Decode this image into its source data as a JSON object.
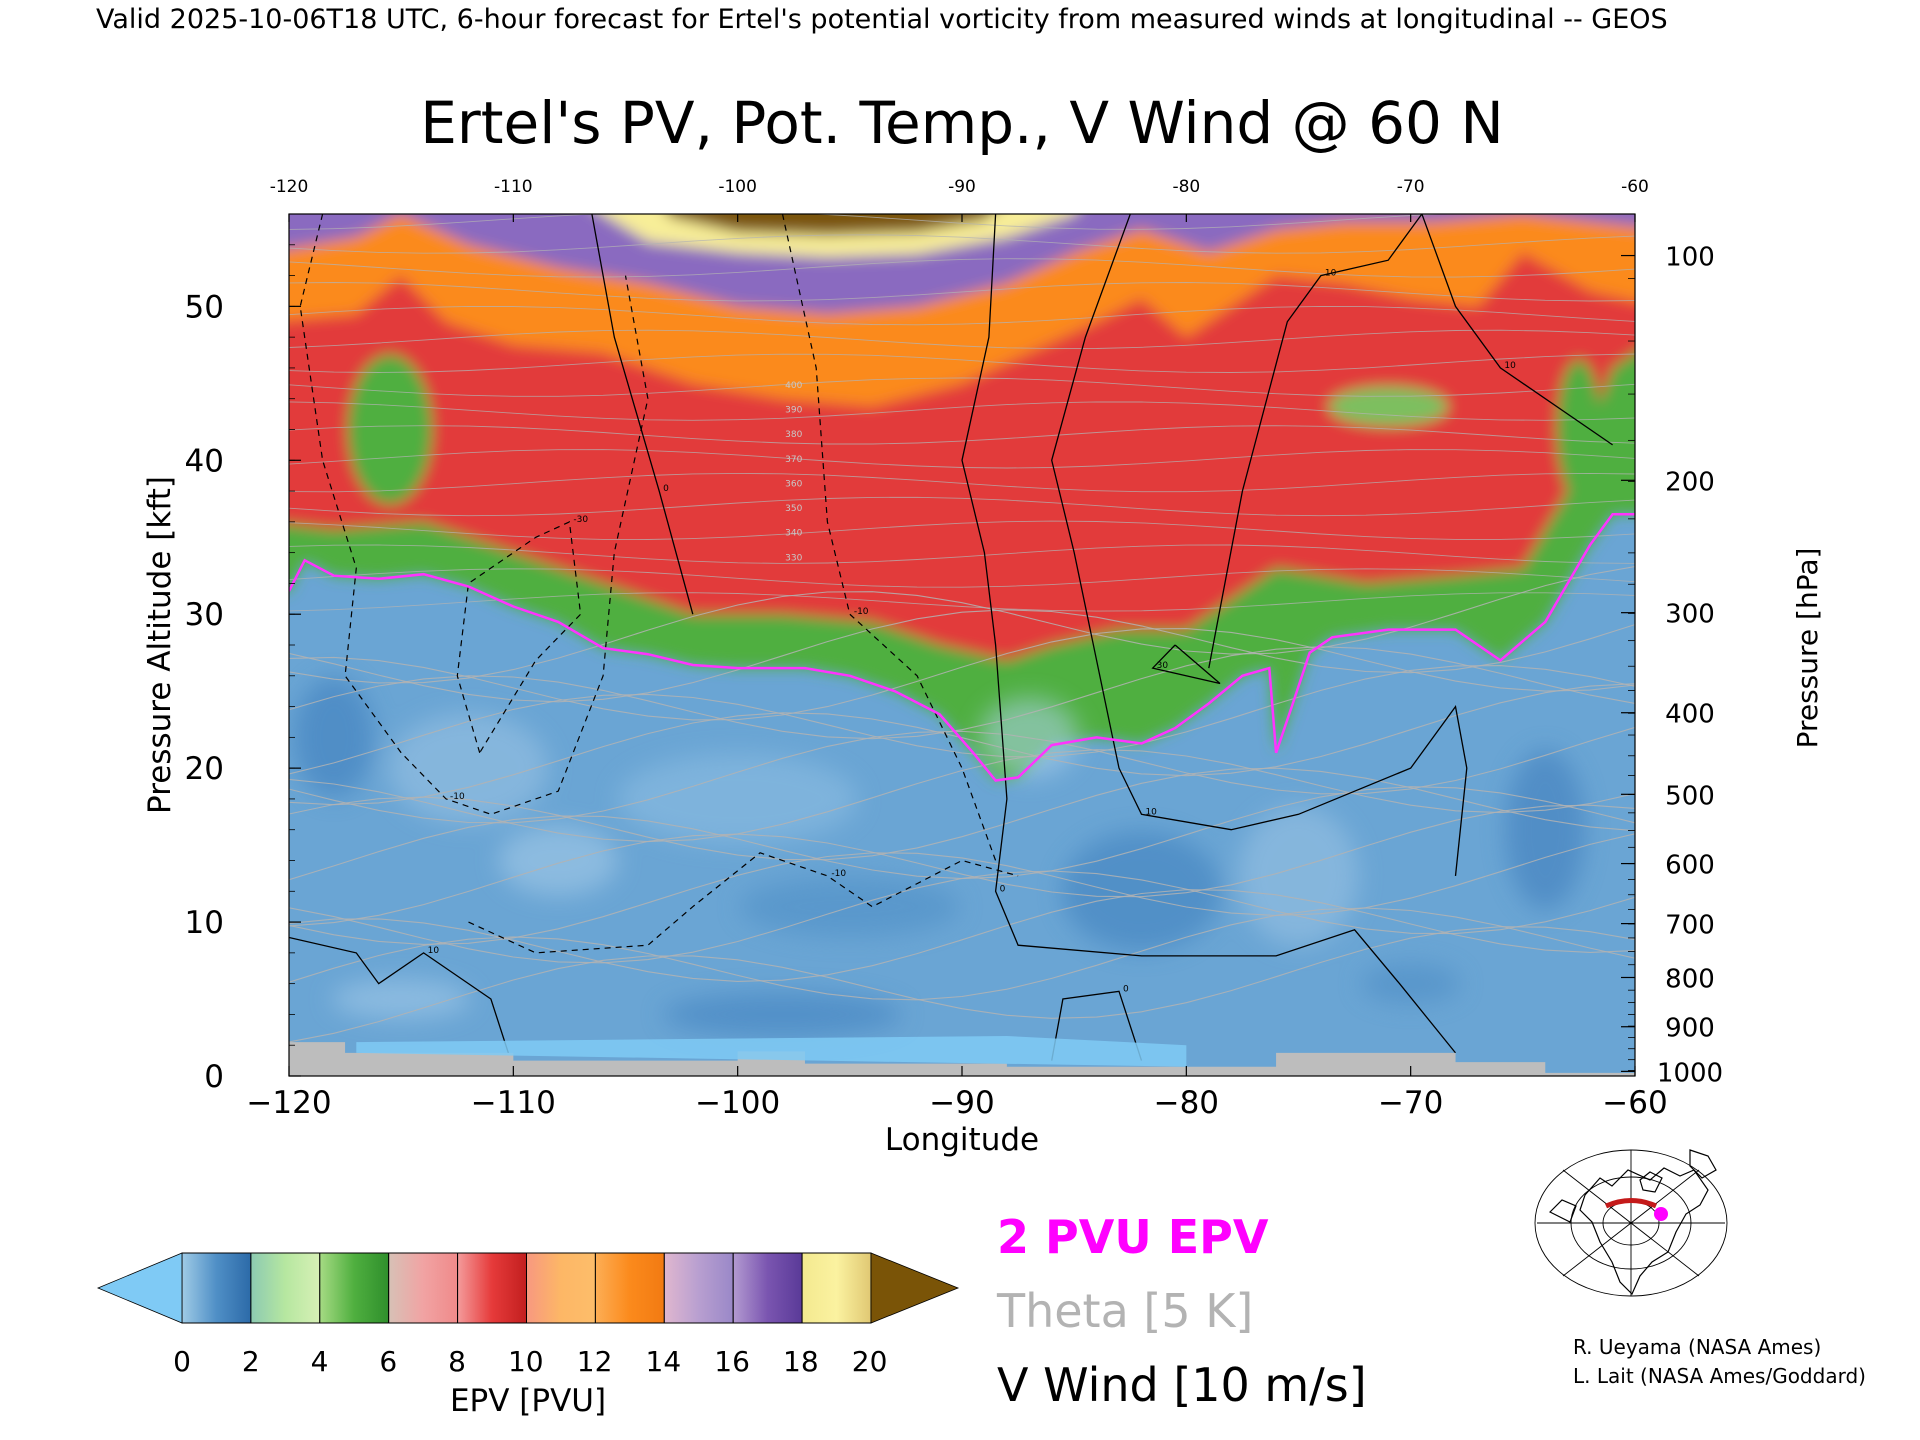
{
  "header": {
    "valid_line": "Valid 2025-10-06T18 UTC, 6-hour forecast for Ertel's potential vorticity from measured winds at longitudinal -- GEOS"
  },
  "chart_data": {
    "type": "heatmap",
    "title": "Ertel's PV, Pot. Temp., V Wind @ 60 N",
    "xlabel": "Longitude",
    "ylabel": "Pressure Altitude [kft]",
    "y2label": "Pressure [hPa]",
    "xlim": [
      -120,
      -60
    ],
    "ylim": [
      0,
      56
    ],
    "x_ticks": [
      -120,
      -110,
      -100,
      -90,
      -80,
      -70,
      -60
    ],
    "x_tick_labels": [
      "−120",
      "−110",
      "−100",
      "−90",
      "−80",
      "−70",
      "−60"
    ],
    "x_top_tick_labels": [
      "-120",
      "-110",
      "-100",
      "-90",
      "-80",
      "-70",
      "-60"
    ],
    "y_ticks": [
      0,
      10,
      20,
      30,
      40,
      50
    ],
    "y_tick_labels": [
      "0",
      "10",
      "20",
      "30",
      "40",
      "50"
    ],
    "pressure_ticks": [
      {
        "hpa": 1000,
        "label": "1000",
        "kft": 0.3
      },
      {
        "hpa": 900,
        "label": "900",
        "kft": 3.2
      },
      {
        "hpa": 800,
        "label": "800",
        "kft": 6.4
      },
      {
        "hpa": 700,
        "label": "700",
        "kft": 9.9
      },
      {
        "hpa": 600,
        "label": "600",
        "kft": 13.8
      },
      {
        "hpa": 500,
        "label": "500",
        "kft": 18.3
      },
      {
        "hpa": 400,
        "label": "400",
        "kft": 23.6
      },
      {
        "hpa": 300,
        "label": "300",
        "kft": 30.1
      },
      {
        "hpa": 200,
        "label": "200",
        "kft": 38.7
      },
      {
        "hpa": 100,
        "label": "100",
        "kft": 53.3
      }
    ],
    "epv_colorbar": {
      "label": "EPV [PVU]",
      "ticks": [
        "0",
        "2",
        "4",
        "6",
        "8",
        "10",
        "12",
        "14",
        "16",
        "18",
        "20"
      ],
      "under_color": "#7fcaf5",
      "over_color": "#7a5407",
      "segments": [
        [
          "#9fcbe6",
          "#4f8fc6",
          "#2c6aa8"
        ],
        [
          "#8ccab2",
          "#b6e7a0",
          "#d7f0b6"
        ],
        [
          "#a6db84",
          "#4faf3f",
          "#2f8f2c"
        ],
        [
          "#d7c1b6",
          "#f1a3a3",
          "#f08a8a"
        ],
        [
          "#f49b9b",
          "#e63a3a",
          "#c21f1f"
        ],
        [
          "#f79880",
          "#fdb766",
          "#fdbd6a"
        ],
        [
          "#fdae55",
          "#fb8a1c",
          "#f27a12"
        ],
        [
          "#e0b7cf",
          "#b89fd0",
          "#9a88c8"
        ],
        [
          "#b39ad1",
          "#7a55b0",
          "#5a3a98"
        ],
        [
          "#f3e98f",
          "#fbf2a0",
          "#e0c873"
        ],
        [
          "#8a6414",
          "#7a5407"
        ]
      ]
    },
    "pv_regions": [
      {
        "name": "troposphere",
        "color": "#6aa5d4"
      },
      {
        "name": "2-6 PVU",
        "color": "#4faf3f"
      },
      {
        "name": "7-11 PVU",
        "color": "#e23b3b"
      },
      {
        "name": "12-13 PVU",
        "color": "#fb8a1c"
      },
      {
        "name": "14-17 PVU",
        "color": "#8a6ac0"
      },
      {
        "name": "18-19 PVU",
        "color": "#f8ee98"
      },
      {
        "name": ">20 PVU",
        "color": "#7a5407"
      },
      {
        "name": "terrain",
        "color": "#bdbdbd"
      }
    ],
    "tropopause_2pvu_kft": [
      [
        -120,
        31.5
      ],
      [
        -119.3,
        33.5
      ],
      [
        -118,
        32.5
      ],
      [
        -116,
        32.3
      ],
      [
        -114,
        32.6
      ],
      [
        -112,
        31.8
      ],
      [
        -110,
        30.5
      ],
      [
        -108,
        29.5
      ],
      [
        -106,
        27.8
      ],
      [
        -104,
        27.4
      ],
      [
        -102,
        26.7
      ],
      [
        -100,
        26.5
      ],
      [
        -97,
        26.5
      ],
      [
        -95,
        26.0
      ],
      [
        -93,
        25.0
      ],
      [
        -91,
        23.5
      ],
      [
        -89.5,
        21.0
      ],
      [
        -88.5,
        19.2
      ],
      [
        -87.5,
        19.4
      ],
      [
        -86,
        21.5
      ],
      [
        -84,
        22.0
      ],
      [
        -82,
        21.6
      ],
      [
        -80.5,
        22.6
      ],
      [
        -79,
        24.2
      ],
      [
        -77.5,
        26.0
      ],
      [
        -76.3,
        26.5
      ],
      [
        -76,
        21.0
      ],
      [
        -75.3,
        24.0
      ],
      [
        -74.5,
        27.5
      ],
      [
        -73.5,
        28.5
      ],
      [
        -71,
        29.0
      ],
      [
        -68,
        29.0
      ],
      [
        -66,
        27.0
      ],
      [
        -64,
        29.5
      ],
      [
        -62,
        34.5
      ],
      [
        -61,
        36.5
      ],
      [
        -60,
        36.5
      ]
    ],
    "theta_labels": [
      "330",
      "340",
      "350",
      "360",
      "370",
      "380",
      "390",
      "400"
    ],
    "v_wind_contours": [
      {
        "label": "0",
        "points": [
          [
            -106.5,
            56
          ],
          [
            -105.5,
            48
          ],
          [
            -103.5,
            38
          ],
          [
            -102,
            30
          ]
        ]
      },
      {
        "label": "0",
        "points": [
          [
            -88.5,
            56
          ],
          [
            -88.8,
            48
          ],
          [
            -90,
            40
          ],
          [
            -89,
            34
          ],
          [
            -88.5,
            28
          ],
          [
            -88,
            18
          ],
          [
            -88.5,
            12
          ],
          [
            -87.5,
            8.5
          ],
          [
            -82,
            7.8
          ],
          [
            -76,
            7.8
          ],
          [
            -72.5,
            9.5
          ],
          [
            -70.5,
            6
          ],
          [
            -68,
            1.5
          ]
        ]
      },
      {
        "label": "10",
        "points": [
          [
            -82.5,
            56
          ],
          [
            -84.5,
            48
          ],
          [
            -86,
            40
          ],
          [
            -85,
            34
          ],
          [
            -84,
            27
          ],
          [
            -83,
            20
          ],
          [
            -82,
            17
          ],
          [
            -78,
            16
          ],
          [
            -75,
            17
          ],
          [
            -70,
            20
          ],
          [
            -68,
            24
          ],
          [
            -67.5,
            20
          ],
          [
            -68,
            13
          ]
        ]
      },
      {
        "label": "10",
        "points": [
          [
            -69.5,
            56
          ],
          [
            -68,
            50
          ],
          [
            -66,
            46
          ],
          [
            -61,
            41
          ]
        ]
      },
      {
        "label": "10",
        "points": [
          [
            -79,
            26.5
          ],
          [
            -77.5,
            38
          ],
          [
            -75.5,
            49
          ],
          [
            -74,
            52
          ],
          [
            -71,
            53
          ],
          [
            -69.5,
            56
          ]
        ]
      },
      {
        "label": "30",
        "points": [
          [
            -80.5,
            28
          ],
          [
            -78.5,
            25.5
          ],
          [
            -81.5,
            26.5
          ],
          [
            -80.5,
            28
          ]
        ]
      },
      {
        "label": "10",
        "points": [
          [
            -120,
            9
          ],
          [
            -117,
            8
          ],
          [
            -116,
            6
          ],
          [
            -114,
            8
          ],
          [
            -111,
            5
          ],
          [
            -110,
            0.5
          ]
        ]
      },
      {
        "label": "0",
        "points": [
          [
            -86,
            1
          ],
          [
            -85.5,
            5
          ],
          [
            -83,
            5.5
          ],
          [
            -82,
            1
          ]
        ]
      }
    ],
    "v_wind_negative_contours": [
      {
        "label": "-10",
        "points": [
          [
            -118.5,
            56
          ],
          [
            -119.5,
            50
          ],
          [
            -118.5,
            40
          ],
          [
            -117,
            33
          ],
          [
            -117.5,
            26
          ],
          [
            -115,
            21
          ],
          [
            -113,
            18
          ],
          [
            -111,
            17
          ],
          [
            -108,
            18.5
          ],
          [
            -106,
            26
          ],
          [
            -105.5,
            34
          ],
          [
            -104,
            44
          ],
          [
            -105,
            52
          ]
        ]
      },
      {
        "label": "-30",
        "points": [
          [
            -111.5,
            21
          ],
          [
            -112.5,
            26
          ],
          [
            -112,
            32
          ],
          [
            -109,
            35
          ],
          [
            -107.5,
            36
          ],
          [
            -107,
            30
          ],
          [
            -109,
            27
          ],
          [
            -111.5,
            21
          ]
        ]
      },
      {
        "label": "-10",
        "points": [
          [
            -112,
            10
          ],
          [
            -109,
            8
          ],
          [
            -104,
            8.5
          ],
          [
            -102,
            11
          ],
          [
            -99,
            14.5
          ],
          [
            -96,
            13
          ],
          [
            -94,
            11
          ],
          [
            -92,
            12.5
          ],
          [
            -90,
            14
          ],
          [
            -87.5,
            13
          ]
        ]
      },
      {
        "label": "-10",
        "points": [
          [
            -98,
            56
          ],
          [
            -96.5,
            46
          ],
          [
            -96,
            36
          ],
          [
            -95,
            30
          ],
          [
            -92,
            26
          ],
          [
            -90,
            20
          ],
          [
            -88.5,
            14
          ]
        ]
      }
    ],
    "inset_map": {
      "cross_section_lat": 60,
      "lon_range": [
        -120,
        -60
      ]
    }
  },
  "legend": {
    "epv_line": "2 PVU EPV",
    "theta_line": "Theta [5 K]",
    "wind_line": "V Wind [10 m/s]",
    "epv_color": "#ff00ff",
    "theta_color": "#b3b3b3",
    "wind_color": "#000000"
  },
  "credits": {
    "line1": "R. Ueyama (NASA Ames)",
    "line2": "L. Lait (NASA Ames/Goddard)"
  }
}
